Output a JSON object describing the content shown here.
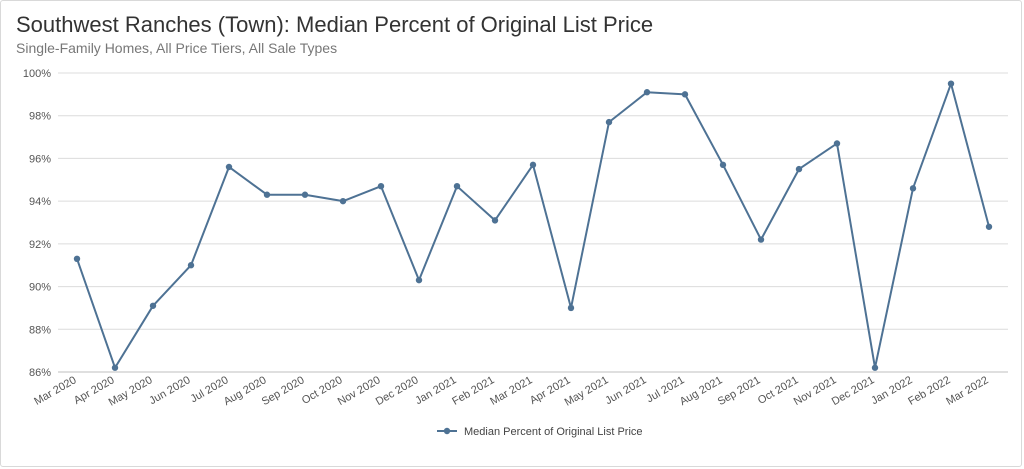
{
  "title": "Southwest Ranches (Town): Median Percent of Original List Price",
  "subtitle": "Single-Family Homes, All Price Tiers, All Sale Types",
  "colors": {
    "line": "#4e7294",
    "grid": "#dcdcdc",
    "axis": "#bfbfbf"
  },
  "chart_data": {
    "type": "line",
    "title": "Southwest Ranches (Town): Median Percent of Original List Price",
    "subtitle": "Single-Family Homes, All Price Tiers, All Sale Types",
    "xlabel": "",
    "ylabel": "",
    "ylim": [
      86,
      100
    ],
    "yticks": [
      86,
      88,
      90,
      92,
      94,
      96,
      98,
      100
    ],
    "ytick_labels": [
      "86%",
      "88%",
      "90%",
      "92%",
      "94%",
      "96%",
      "98%",
      "100%"
    ],
    "grid": true,
    "legend_position": "bottom-center",
    "categories": [
      "Mar 2020",
      "Apr 2020",
      "May 2020",
      "Jun 2020",
      "Jul 2020",
      "Aug 2020",
      "Sep 2020",
      "Oct 2020",
      "Nov 2020",
      "Dec 2020",
      "Jan 2021",
      "Feb 2021",
      "Mar 2021",
      "Apr 2021",
      "May 2021",
      "Jun 2021",
      "Jul 2021",
      "Aug 2021",
      "Sep 2021",
      "Oct 2021",
      "Nov 2021",
      "Dec 2021",
      "Jan 2022",
      "Feb 2022",
      "Mar 2022"
    ],
    "series": [
      {
        "name": "Median Percent of Original List Price",
        "values": [
          91.3,
          86.2,
          89.1,
          91.0,
          95.6,
          94.3,
          94.3,
          94.0,
          94.7,
          90.3,
          94.7,
          93.1,
          95.7,
          89.0,
          97.7,
          99.1,
          99.0,
          95.7,
          92.2,
          95.5,
          96.7,
          86.2,
          94.6,
          99.5,
          92.8
        ]
      }
    ]
  }
}
